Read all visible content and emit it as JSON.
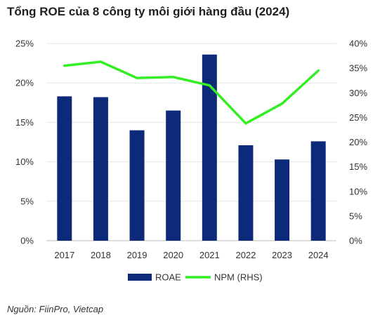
{
  "title": "Tổng ROE của 8 công ty môi giới hàng đầu (2024)",
  "source": "Nguồn: FiinPro, Vietcap",
  "chart_data": {
    "type": "bar",
    "categories": [
      "2017",
      "2018",
      "2019",
      "2020",
      "2021",
      "2022",
      "2023",
      "2024"
    ],
    "series": [
      {
        "name": "ROAE",
        "type": "bar",
        "axis": "left",
        "color": "#0d2a7a",
        "values": [
          18.3,
          18.2,
          14.0,
          16.5,
          23.6,
          12.1,
          10.3,
          12.6
        ]
      },
      {
        "name": "NPM (RHS)",
        "type": "line",
        "axis": "right",
        "color": "#33ee22",
        "values": [
          35.5,
          36.3,
          33.0,
          33.2,
          31.5,
          23.8,
          27.8,
          34.5
        ]
      }
    ],
    "y_left": {
      "ylim": [
        0,
        25
      ],
      "ticks": [
        "0%",
        "5%",
        "10%",
        "15%",
        "20%",
        "25%"
      ]
    },
    "y_right": {
      "ylim": [
        0,
        40
      ],
      "ticks": [
        "0%",
        "5%",
        "10%",
        "15%",
        "20%",
        "25%",
        "30%",
        "35%",
        "40%"
      ]
    },
    "grid": true,
    "legend": "bottom"
  }
}
